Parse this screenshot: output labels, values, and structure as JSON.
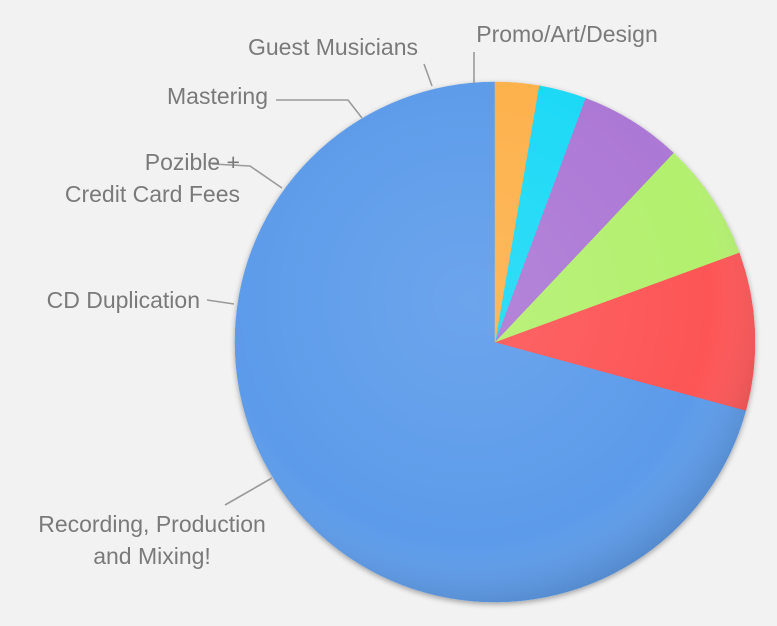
{
  "chart_data": {
    "type": "pie",
    "title": "",
    "slices": [
      {
        "label": [
          "Recording, Production",
          "and Mixing!"
        ],
        "value": 72.0,
        "color": "#5b9bea"
      },
      {
        "label": [
          "CD Duplication"
        ],
        "value": 10.0,
        "color": "#fd5457"
      },
      {
        "label": [
          "Pozible +",
          "Credit Card Fees"
        ],
        "value": 7.5,
        "color": "#b3f06e"
      },
      {
        "label": [
          "Mastering"
        ],
        "value": 6.5,
        "color": "#ac78d5"
      },
      {
        "label": [
          "Guest Musicians"
        ],
        "value": 3.0,
        "color": "#1ed9f6"
      },
      {
        "label": [
          "Promo/Art/Design"
        ],
        "value": 2.75,
        "color": "#fdb14b"
      }
    ],
    "start": "12 o'clock",
    "direction": "counter-clockwise",
    "legend": "none (callout labels with leader lines)"
  },
  "styles": {
    "background": "#f2f2f2",
    "label_color": "#7a7a7a",
    "leader_color": "#9a9a9a"
  }
}
